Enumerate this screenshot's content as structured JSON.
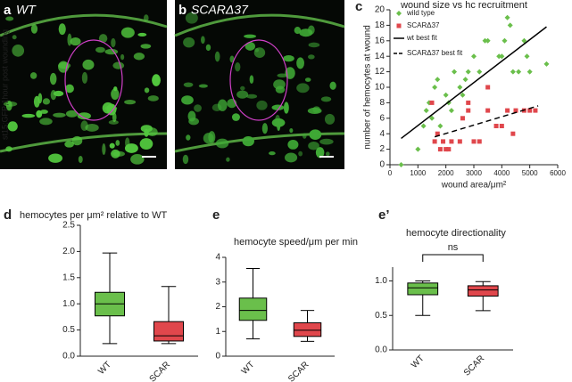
{
  "images": {
    "vertical_label": "st15;GFP;1hour post wounding",
    "panels": [
      {
        "letter": "a",
        "label": "WT"
      },
      {
        "letter": "b",
        "label": "SCARΔ37"
      }
    ]
  },
  "chart_data": [
    {
      "type": "scatter",
      "panel": "c",
      "title": "wound size vs hc recruitment",
      "xlabel": "wound area/μm²",
      "ylabel": "number of hemocytes at wound",
      "xlim": [
        0,
        6000
      ],
      "xticks": [
        0,
        1000,
        2000,
        3000,
        4000,
        5000,
        6000
      ],
      "ylim": [
        0,
        20
      ],
      "yticks": [
        0,
        2,
        4,
        6,
        8,
        10,
        12,
        14,
        16,
        18,
        20
      ],
      "legend": "top-left",
      "series": [
        {
          "name": "wild type",
          "color": "#6abf4b",
          "marker": "diamond",
          "x": [
            400,
            1000,
            1200,
            1300,
            1400,
            1500,
            1600,
            1700,
            1800,
            2000,
            2100,
            2200,
            2300,
            2500,
            2600,
            2700,
            2800,
            3000,
            3200,
            3400,
            3500,
            3900,
            4000,
            4100,
            4200,
            4300,
            4400,
            4600,
            4800,
            4900,
            5000,
            5600
          ],
          "y": [
            0,
            2,
            5,
            7,
            8,
            6,
            10,
            11,
            5,
            9,
            8,
            7,
            12,
            10,
            9,
            11,
            12,
            14,
            12,
            16,
            16,
            14,
            14,
            16,
            19,
            18,
            12,
            12,
            16,
            14,
            12,
            13
          ]
        },
        {
          "name": "SCARΔ37",
          "color": "#e0474c",
          "marker": "square",
          "x": [
            1500,
            1600,
            1700,
            1800,
            1900,
            2000,
            2100,
            2200,
            2500,
            2600,
            2800,
            2800,
            3000,
            3200,
            3500,
            3500,
            3800,
            4000,
            4200,
            4400,
            4500,
            4800,
            5000,
            5200
          ],
          "y": [
            8,
            3,
            4,
            2,
            3,
            2,
            2,
            3,
            3,
            6,
            8,
            7,
            3,
            3,
            10,
            7,
            5,
            5,
            7,
            4,
            7,
            7,
            7,
            7
          ]
        }
      ],
      "fits": [
        {
          "name": "wt best fit",
          "dash": false,
          "x": [
            400,
            5600
          ],
          "y": [
            3.4,
            17.8
          ]
        },
        {
          "name": "SCARΔ37 best fit",
          "dash": true,
          "x": [
            1600,
            5300
          ],
          "y": [
            3.6,
            7.6
          ]
        }
      ]
    },
    {
      "type": "box",
      "panel": "d",
      "title": "hemocytes per μm² relative to WT",
      "categories": [
        "WT",
        "SCAR"
      ],
      "ylim": [
        0,
        2.5
      ],
      "yticks": [
        {
          "value": 0,
          "label": "0.0"
        },
        0.5,
        {
          "value": 1,
          "label": "1.0"
        },
        1.5,
        {
          "value": 2,
          "label": "2.0"
        },
        2.5
      ],
      "boxes": [
        {
          "color": "#6abf4b",
          "min": 0.24,
          "q1": 0.77,
          "median": 1.0,
          "q3": 1.22,
          "max": 1.97
        },
        {
          "color": "#e0474c",
          "min": 0.24,
          "q1": 0.29,
          "median": 0.39,
          "q3": 0.66,
          "max": 1.33
        }
      ]
    },
    {
      "type": "box",
      "panel": "e",
      "title": "hemocyte speed/μm per min",
      "categories": [
        "WT",
        "SCAR"
      ],
      "ylim": [
        0,
        4
      ],
      "yticks": [
        0,
        1,
        2,
        3,
        4
      ],
      "boxes": [
        {
          "color": "#6abf4b",
          "min": 0.7,
          "q1": 1.45,
          "median": 1.85,
          "q3": 2.35,
          "max": 3.55
        },
        {
          "color": "#e0474c",
          "min": 0.6,
          "q1": 0.8,
          "median": 1.05,
          "q3": 1.35,
          "max": 1.85
        }
      ]
    },
    {
      "type": "box",
      "panel": "e’",
      "title": "hemocyte directionality",
      "annotation": "ns",
      "categories": [
        "WT",
        "SCAR"
      ],
      "ylim": [
        0,
        1.2
      ],
      "yticks": [
        {
          "value": 0,
          "label": "0.0"
        },
        0.5,
        {
          "value": 1,
          "label": "1.0"
        }
      ],
      "boxes": [
        {
          "color": "#6abf4b",
          "min": 0.5,
          "q1": 0.8,
          "median": 0.9,
          "q3": 0.97,
          "max": 1.0
        },
        {
          "color": "#e0474c",
          "min": 0.57,
          "q1": 0.78,
          "median": 0.87,
          "q3": 0.93,
          "max": 0.99
        }
      ]
    }
  ]
}
